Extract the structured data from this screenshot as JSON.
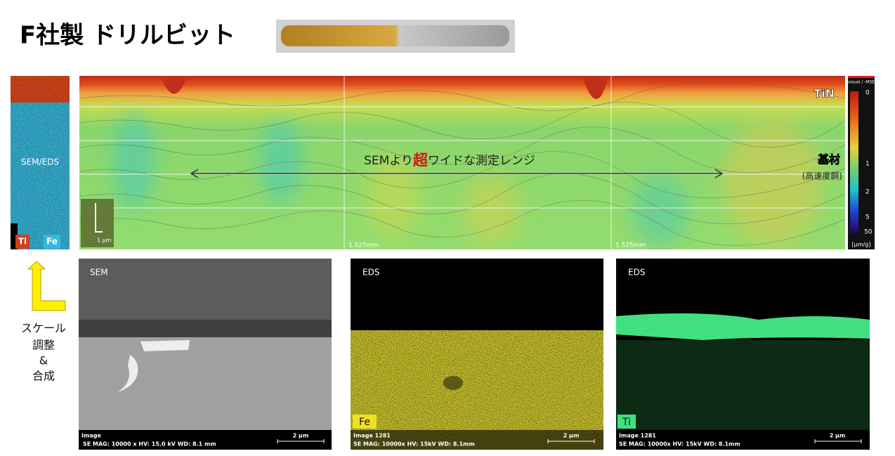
{
  "header": {
    "title": "F社製 ドリルビット"
  },
  "left_panel": {
    "label": "SEM/EDS",
    "legend": [
      "Ti",
      "Fe"
    ]
  },
  "map": {
    "layer_top": "TiN",
    "headline_parts": [
      "SEMより",
      "超",
      "ワイドな測定レンジ"
    ],
    "substrate": "基材",
    "substrate_note": "(高速度鋼)",
    "scale_label": "1 μm",
    "x_labels": [
      "1.525mm",
      "1.525mm"
    ]
  },
  "colorbar": {
    "title": "visual / -MSE",
    "ticks": [
      "0",
      "1",
      "2",
      "5",
      "50"
    ],
    "unit": "[μm/g]"
  },
  "note": {
    "lines": [
      "スケール",
      "調整",
      "&",
      "合成"
    ]
  },
  "panels": [
    {
      "title": "SEM",
      "caption": "Image",
      "meta": "SE  MAG: 10000 x  HV: 15.0 kV  WD: 8.1 mm",
      "scale": "2 μm"
    },
    {
      "title": "EDS",
      "element": "Fe",
      "caption": "Image 1281",
      "meta": "SE  MAG: 10000x  HV: 15kV  WD: 8.1mm",
      "scale": "2 μm"
    },
    {
      "title": "EDS",
      "element": "Ti",
      "caption": "Image 1281",
      "meta": "SE  MAG: 10000x  HV: 15kV  WD: 8.1mm",
      "scale": "2 μm"
    }
  ]
}
